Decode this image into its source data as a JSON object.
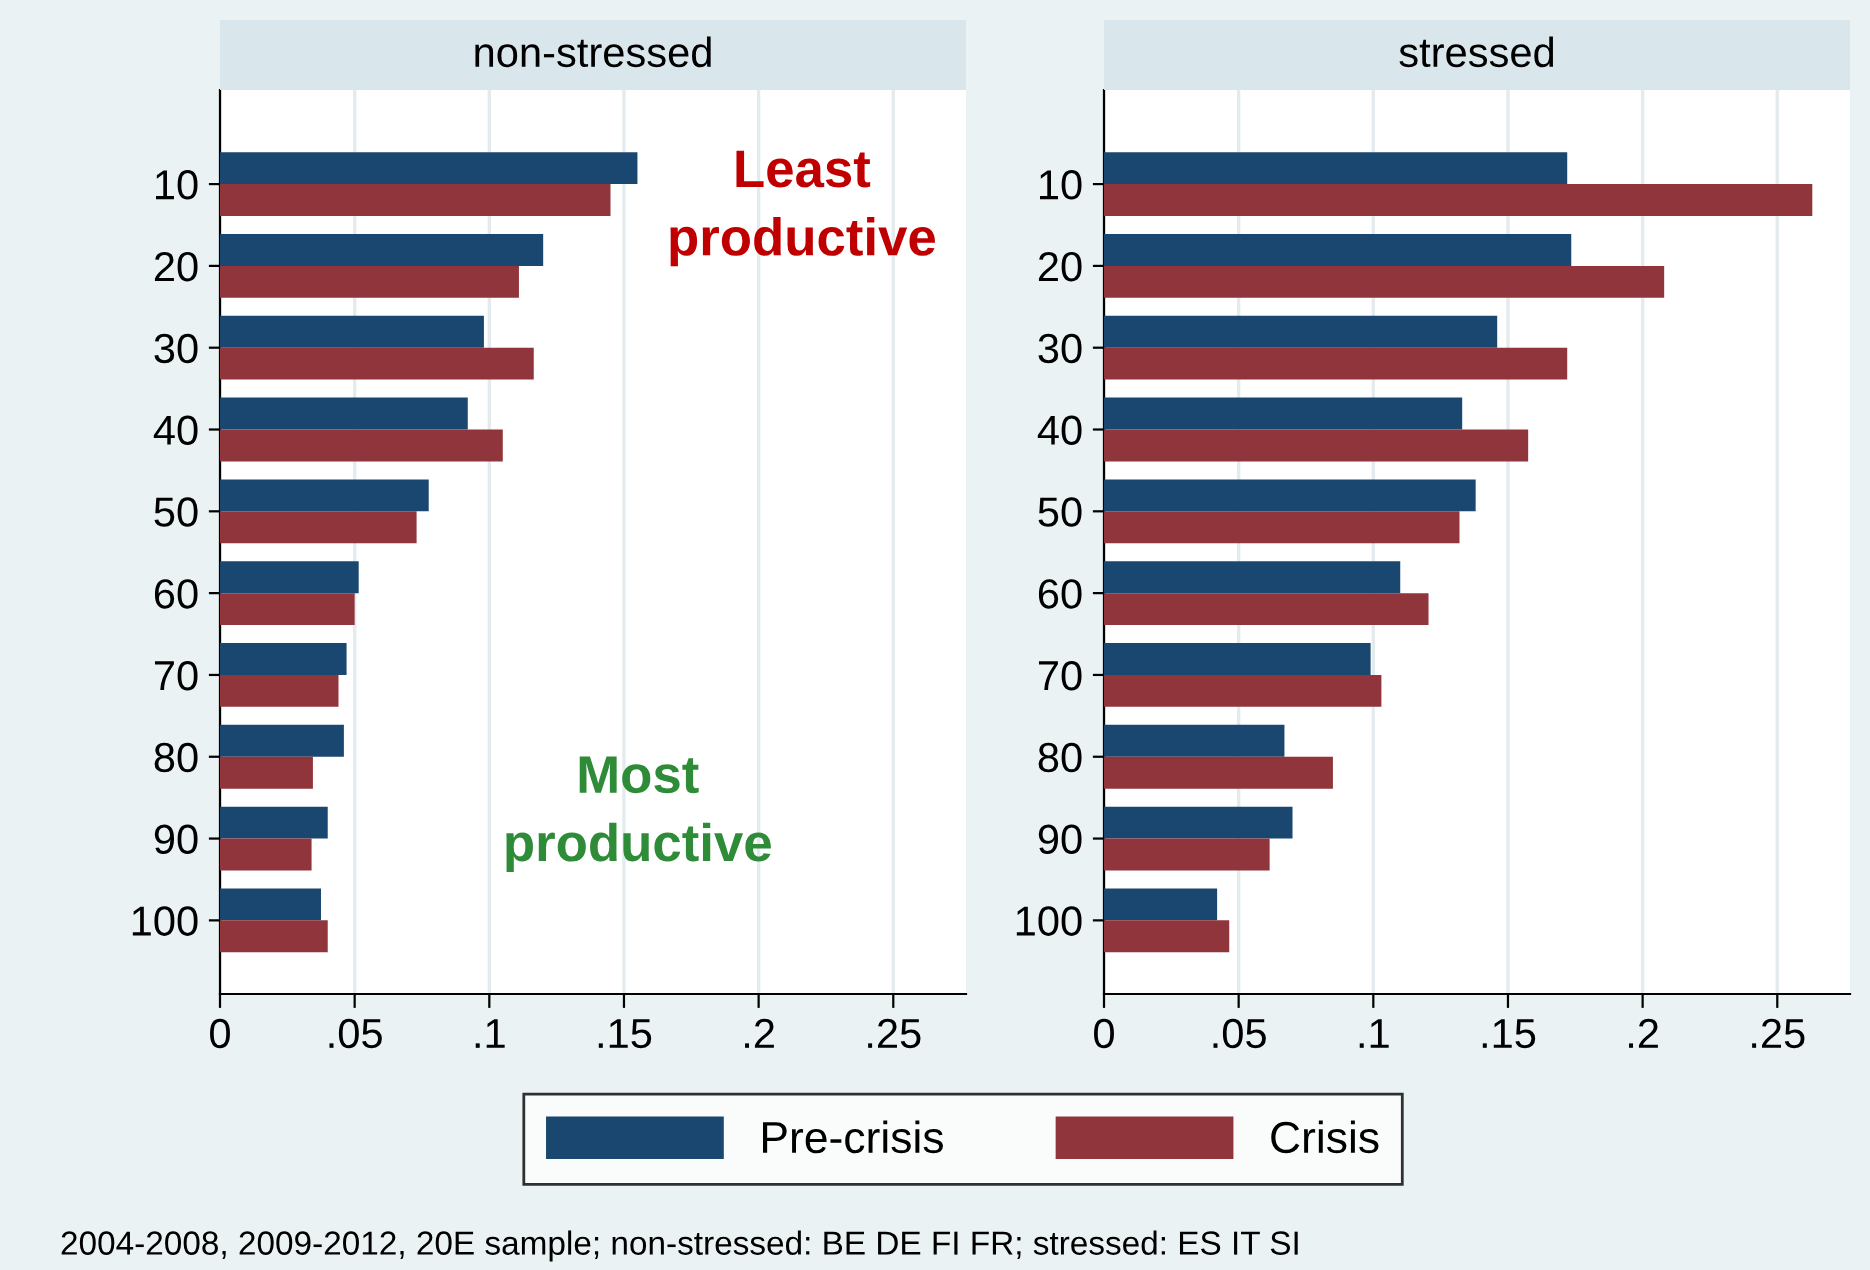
{
  "chart_data": [
    {
      "type": "bar",
      "orientation": "horizontal",
      "title": "non-stressed",
      "categories": [
        "10",
        "20",
        "30",
        "40",
        "50",
        "60",
        "70",
        "80",
        "90",
        "100"
      ],
      "series": [
        {
          "name": "Pre-crisis",
          "color": "#1a476f",
          "values": [
            0.155,
            0.12,
            0.098,
            0.092,
            0.0775,
            0.0515,
            0.047,
            0.046,
            0.04,
            0.0375
          ]
        },
        {
          "name": "Crisis",
          "color": "#90353b",
          "values": [
            0.145,
            0.111,
            0.1165,
            0.105,
            0.073,
            0.05,
            0.044,
            0.0345,
            0.034,
            0.04
          ]
        }
      ],
      "xlim": [
        0,
        0.277
      ],
      "xticks": [
        {
          "value": 0,
          "label": "0"
        },
        {
          "value": 0.05,
          "label": ".05"
        },
        {
          "value": 0.1,
          "label": ".1"
        },
        {
          "value": 0.15,
          "label": ".15"
        },
        {
          "value": 0.2,
          "label": ".2"
        },
        {
          "value": 0.25,
          "label": ".25"
        }
      ],
      "grid": "x",
      "legend": "bottom",
      "annotations": [
        "Least productive",
        "Most productive",
        "2004-2008, 2009-2012, 20E sample; non-stressed: BE DE FI FR; stressed: ES IT SI"
      ]
    },
    {
      "type": "bar",
      "orientation": "horizontal",
      "title": "stressed",
      "categories": [
        "10",
        "20",
        "30",
        "40",
        "50",
        "60",
        "70",
        "80",
        "90",
        "100"
      ],
      "series": [
        {
          "name": "Pre-crisis",
          "color": "#1a476f",
          "values": [
            0.172,
            0.1735,
            0.146,
            0.133,
            0.138,
            0.11,
            0.099,
            0.067,
            0.07,
            0.042
          ]
        },
        {
          "name": "Crisis",
          "color": "#90353b",
          "values": [
            0.263,
            0.208,
            0.172,
            0.1575,
            0.132,
            0.1205,
            0.103,
            0.085,
            0.0615,
            0.0465
          ]
        }
      ],
      "xlim": [
        0,
        0.277
      ],
      "xticks": [
        {
          "value": 0,
          "label": "0"
        },
        {
          "value": 0.05,
          "label": ".05"
        },
        {
          "value": 0.1,
          "label": ".1"
        },
        {
          "value": 0.15,
          "label": ".15"
        },
        {
          "value": 0.2,
          "label": ".2"
        },
        {
          "value": 0.25,
          "label": ".25"
        }
      ],
      "grid": "x"
    }
  ]
}
